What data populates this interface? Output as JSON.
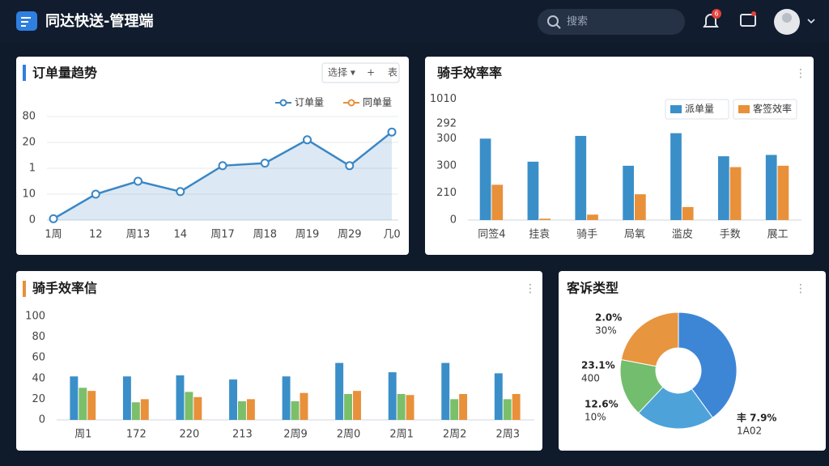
{
  "header": {
    "title": "同达快送-管理端",
    "search": "搜索",
    "badge": "6"
  },
  "chart_data": [
    {
      "type": "line",
      "title": "订单量趋势",
      "controls": [
        "选择 ▾",
        "+",
        "表"
      ],
      "categories": [
        "1周",
        "12",
        "周13",
        "14",
        "周17",
        "周18",
        "周19",
        "周29",
        "几0"
      ],
      "series": [
        {
          "name": "订单量",
          "color": "#3b86c4",
          "values": [
            0.5,
            10,
            15,
            11,
            21,
            22,
            31,
            21,
            34
          ]
        },
        {
          "name": "同单量",
          "color": "#e8903a"
        }
      ],
      "ylim": [
        0,
        40
      ],
      "yticks": [
        0,
        10,
        {
          "value": 20,
          "label": "1"
        },
        {
          "value": 30,
          "label": "20"
        },
        {
          "value": 40,
          "label": "80"
        }
      ],
      "grid": true
    },
    {
      "type": "bar",
      "title": "骑手效率率",
      "categories": [
        "同签4",
        "挂袁",
        "骑手",
        "局氧",
        "滥皮",
        "手数",
        "展工"
      ],
      "series": [
        {
          "name": "派单量",
          "color": "#3a8fc9",
          "values": [
            300,
            215,
            310,
            200,
            320,
            235,
            240
          ]
        },
        {
          "name": "客签效率",
          "color": "#e8903a",
          "values": [
            130,
            5,
            20,
            95,
            48,
            195,
            200
          ]
        }
      ],
      "ylim": [
        0,
        450
      ],
      "yticks": [
        0,
        {
          "value": 100,
          "label": "210"
        },
        {
          "value": 200,
          "label": "300"
        },
        300,
        {
          "value": 355,
          "label": "292"
        },
        {
          "value": 445,
          "label": "1010"
        }
      ],
      "grid": false
    },
    {
      "type": "bar",
      "title": "骑手效率信",
      "categories": [
        "周1",
        "172",
        "220",
        "213",
        "2周9",
        "2周0",
        "2周1",
        "2周2",
        "2周3"
      ],
      "series": [
        {
          "color": "#3a8fc9",
          "values": [
            42,
            42,
            43,
            39,
            42,
            55,
            46,
            55,
            45
          ]
        },
        {
          "color": "#7bbf6a",
          "values": [
            31,
            17,
            27,
            18,
            18,
            25,
            25,
            20,
            20
          ]
        },
        {
          "color": "#e8903a",
          "values": [
            28,
            20,
            22,
            20,
            26,
            28,
            24,
            25,
            25
          ]
        }
      ],
      "ylim": [
        0,
        100
      ],
      "yticks": [
        0,
        20,
        40,
        60,
        80,
        100
      ],
      "grid": false
    },
    {
      "type": "pie",
      "title": "客诉类型",
      "values": [
        40,
        22,
        16,
        22
      ],
      "colors": [
        "#3d86d6",
        "#4da3d9",
        "#72bd6e",
        "#e8953f"
      ],
      "annotations": [
        {
          "text": "2.0%",
          "sub": "30%"
        },
        {
          "text": "23.1%",
          "sub": "400"
        },
        {
          "text": "12.6%",
          "sub": "10%"
        },
        {
          "text": "丰 7.9%",
          "sub": "1A02"
        }
      ]
    }
  ]
}
